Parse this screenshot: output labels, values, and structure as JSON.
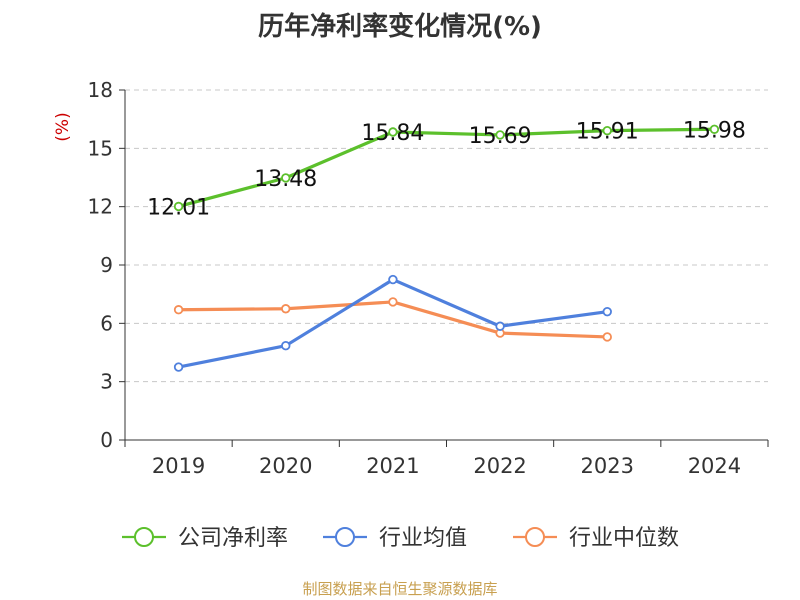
{
  "chart_data": {
    "type": "line",
    "title": "历年净利率变化情况(%)",
    "ylabel": "(%)",
    "xlabel": "",
    "categories": [
      "2019",
      "2020",
      "2021",
      "2022",
      "2023",
      "2024"
    ],
    "ylim": [
      0,
      18
    ],
    "yticks": [
      0,
      3,
      6,
      9,
      12,
      15,
      18
    ],
    "grid": true,
    "legend_position": "bottom",
    "series": [
      {
        "name": "公司净利率",
        "color": "#5cc02c",
        "values": [
          12.01,
          13.48,
          15.84,
          15.69,
          15.91,
          15.98
        ],
        "labels": [
          "12.01",
          "13.48",
          "15.84",
          "15.69",
          "15.91",
          "15.98"
        ]
      },
      {
        "name": "行业均值",
        "color": "#4f80dd",
        "values": [
          3.75,
          4.85,
          8.25,
          5.85,
          6.6,
          null
        ]
      },
      {
        "name": "行业中位数",
        "color": "#f58d55",
        "values": [
          6.7,
          6.75,
          7.1,
          5.5,
          5.3,
          null
        ]
      }
    ]
  },
  "footer": {
    "source": "制图数据来自恒生聚源数据库"
  }
}
